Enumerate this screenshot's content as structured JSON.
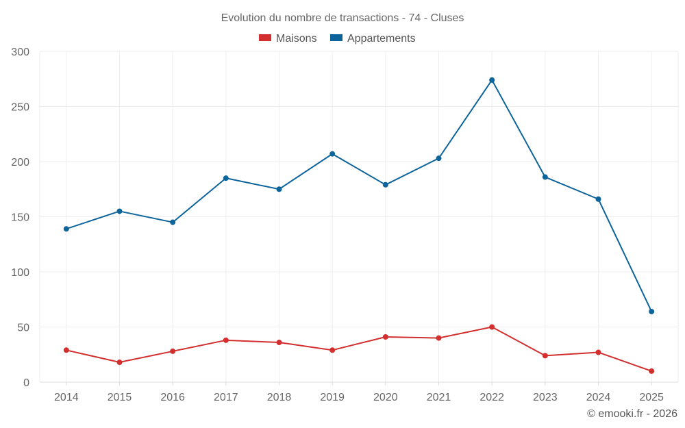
{
  "chart_data": {
    "type": "line",
    "title": "Evolution du nombre de transactions - 74 - Cluses",
    "categories": [
      "2014",
      "2015",
      "2016",
      "2017",
      "2018",
      "2019",
      "2020",
      "2021",
      "2022",
      "2023",
      "2024",
      "2025"
    ],
    "series": [
      {
        "name": "Maisons",
        "color": "#d32f2f",
        "values": [
          29,
          18,
          28,
          38,
          36,
          29,
          41,
          40,
          50,
          24,
          27,
          10
        ]
      },
      {
        "name": "Appartements",
        "color": "#0d649b",
        "values": [
          139,
          155,
          145,
          185,
          175,
          207,
          179,
          203,
          274,
          186,
          166,
          64
        ]
      }
    ],
    "ylim": [
      0,
      300
    ],
    "yticks": [
      0,
      50,
      100,
      150,
      200,
      250,
      300
    ],
    "grid": true,
    "legend_position": "top-center",
    "xlabel": "",
    "ylabel": ""
  },
  "credit": "© emooki.fr - 2026"
}
